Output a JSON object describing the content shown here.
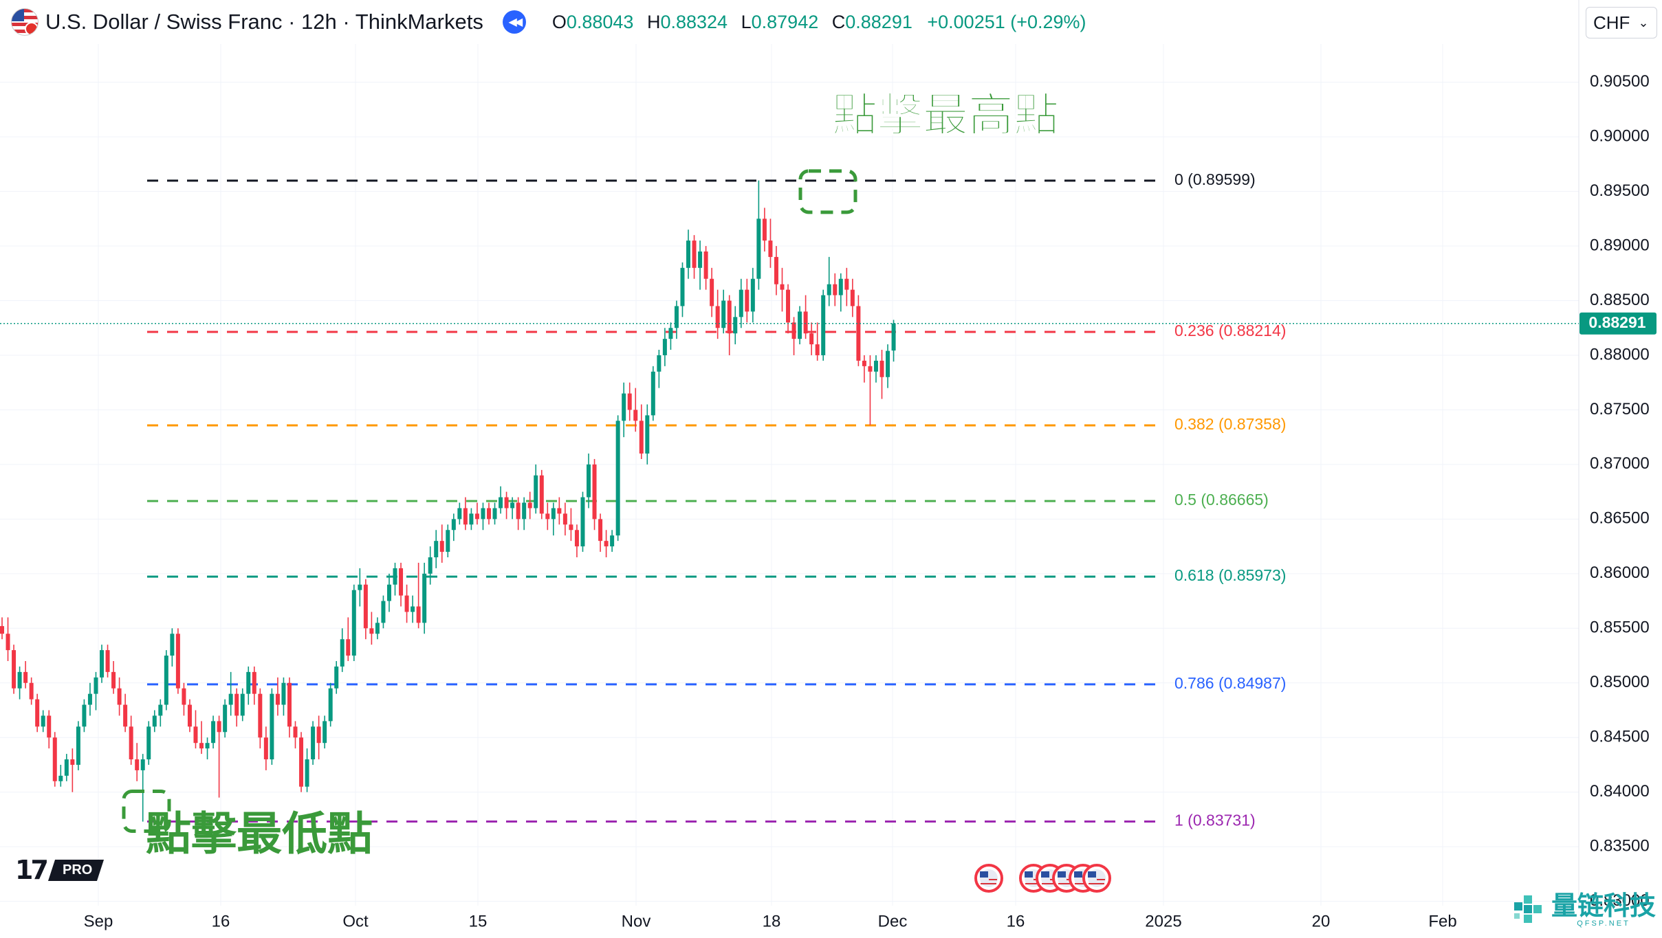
{
  "header": {
    "symbol": "U.S. Dollar / Swiss Franc · 12h · ThinkMarkets",
    "o_label": "O",
    "o": "0.88043",
    "h_label": "H",
    "h": "0.88324",
    "l_label": "L",
    "l": "0.87942",
    "c_label": "C",
    "c": "0.88291",
    "change": "+0.00251 (+0.29%)",
    "currency": "CHF"
  },
  "icons": {
    "flag": "usd-chf-flag-icon",
    "replay": "replay-rewind-icon",
    "chevron": "chevron-down-icon",
    "events": "us-economic-event-icon"
  },
  "colors": {
    "up": "#089981",
    "down": "#f23645",
    "annotation": "#3a9a3a",
    "price_tag": "#089981"
  },
  "annotations": {
    "high_text": "點擊最高點",
    "low_text": "點擊最低點"
  },
  "branding": {
    "logo_text": "17",
    "pro_badge": "PRO",
    "watermark_cn": "量链科技",
    "watermark_en": "QFSP.NET"
  },
  "chart_data": {
    "type": "candlestick",
    "interval": "12h",
    "x_ticks": [
      "Sep",
      "16",
      "Oct",
      "15",
      "Nov",
      "18",
      "Dec",
      "16",
      "2025",
      "20",
      "Feb"
    ],
    "y_ticks": [
      0.905,
      0.9,
      0.895,
      0.89,
      0.885,
      0.88,
      0.875,
      0.87,
      0.865,
      0.86,
      0.855,
      0.85,
      0.845,
      0.84,
      0.835,
      0.83
    ],
    "y_tick_labels": [
      "0.90500",
      "0.90000",
      "0.89500",
      "0.89000",
      "0.88500",
      "0.88000",
      "0.87500",
      "0.87000",
      "0.86500",
      "0.86000",
      "0.85500",
      "0.85000",
      "0.84500",
      "0.84000",
      "0.83500",
      "0.83000"
    ],
    "y_range": [
      0.8296,
      0.9085
    ],
    "last_price": 0.88291,
    "last_price_label": "0.88291",
    "fib_levels": [
      {
        "ratio": "0",
        "value": 0.89599,
        "label": "0 (0.89599)",
        "color": "#131722"
      },
      {
        "ratio": "0.236",
        "value": 0.88214,
        "label": "0.236 (0.88214)",
        "color": "#f23645"
      },
      {
        "ratio": "0.382",
        "value": 0.87358,
        "label": "0.382 (0.87358)",
        "color": "#ff9800"
      },
      {
        "ratio": "0.5",
        "value": 0.86665,
        "label": "0.5 (0.86665)",
        "color": "#4caf50"
      },
      {
        "ratio": "0.618",
        "value": 0.85973,
        "label": "0.618 (0.85973)",
        "color": "#089981"
      },
      {
        "ratio": "0.786",
        "value": 0.84987,
        "label": "0.786 (0.84987)",
        "color": "#2962ff"
      },
      {
        "ratio": "1",
        "value": 0.83731,
        "label": "1 (0.83731)",
        "color": "#9c27b0"
      }
    ],
    "swing_high": 0.89599,
    "swing_low": 0.83731,
    "candles": [
      [
        0.8552,
        0.856,
        0.854,
        0.8545
      ],
      [
        0.8545,
        0.856,
        0.852,
        0.853
      ],
      [
        0.853,
        0.8535,
        0.849,
        0.8495
      ],
      [
        0.8495,
        0.8515,
        0.8485,
        0.851
      ],
      [
        0.851,
        0.852,
        0.8495,
        0.85
      ],
      [
        0.85,
        0.8505,
        0.848,
        0.8485
      ],
      [
        0.8485,
        0.849,
        0.8455,
        0.846
      ],
      [
        0.846,
        0.8475,
        0.8455,
        0.847
      ],
      [
        0.847,
        0.8475,
        0.844,
        0.845
      ],
      [
        0.845,
        0.8455,
        0.8405,
        0.841
      ],
      [
        0.841,
        0.8425,
        0.8405,
        0.8415
      ],
      [
        0.8415,
        0.8435,
        0.841,
        0.843
      ],
      [
        0.843,
        0.844,
        0.84,
        0.8425
      ],
      [
        0.8425,
        0.8465,
        0.842,
        0.846
      ],
      [
        0.846,
        0.8485,
        0.8455,
        0.848
      ],
      [
        0.848,
        0.85,
        0.847,
        0.849
      ],
      [
        0.849,
        0.851,
        0.8475,
        0.8505
      ],
      [
        0.8505,
        0.8535,
        0.85,
        0.853
      ],
      [
        0.853,
        0.8535,
        0.8505,
        0.851
      ],
      [
        0.851,
        0.852,
        0.849,
        0.8495
      ],
      [
        0.8495,
        0.8505,
        0.847,
        0.848
      ],
      [
        0.848,
        0.849,
        0.8455,
        0.846
      ],
      [
        0.846,
        0.847,
        0.8425,
        0.843
      ],
      [
        0.843,
        0.8445,
        0.841,
        0.842
      ],
      [
        0.842,
        0.8435,
        0.8373,
        0.843
      ],
      [
        0.843,
        0.8465,
        0.8425,
        0.846
      ],
      [
        0.846,
        0.8475,
        0.8455,
        0.847
      ],
      [
        0.847,
        0.8485,
        0.846,
        0.848
      ],
      [
        0.848,
        0.853,
        0.8475,
        0.8525
      ],
      [
        0.8525,
        0.855,
        0.8515,
        0.8545
      ],
      [
        0.8545,
        0.855,
        0.849,
        0.8495
      ],
      [
        0.8495,
        0.85,
        0.847,
        0.848
      ],
      [
        0.848,
        0.8485,
        0.8455,
        0.846
      ],
      [
        0.846,
        0.8475,
        0.844,
        0.8445
      ],
      [
        0.8445,
        0.8465,
        0.8435,
        0.844
      ],
      [
        0.844,
        0.845,
        0.843,
        0.8445
      ],
      [
        0.8445,
        0.847,
        0.844,
        0.8465
      ],
      [
        0.8465,
        0.847,
        0.8395,
        0.8455
      ],
      [
        0.8455,
        0.8485,
        0.845,
        0.848
      ],
      [
        0.848,
        0.851,
        0.847,
        0.849
      ],
      [
        0.849,
        0.8495,
        0.846,
        0.847
      ],
      [
        0.847,
        0.8495,
        0.8465,
        0.849
      ],
      [
        0.849,
        0.8515,
        0.848,
        0.851
      ],
      [
        0.851,
        0.8515,
        0.848,
        0.849
      ],
      [
        0.849,
        0.8495,
        0.844,
        0.845
      ],
      [
        0.845,
        0.846,
        0.842,
        0.843
      ],
      [
        0.843,
        0.8495,
        0.8425,
        0.849
      ],
      [
        0.849,
        0.8505,
        0.847,
        0.848
      ],
      [
        0.848,
        0.8505,
        0.847,
        0.85
      ],
      [
        0.85,
        0.8505,
        0.845,
        0.846
      ],
      [
        0.846,
        0.8465,
        0.844,
        0.845
      ],
      [
        0.845,
        0.8455,
        0.84,
        0.8405
      ],
      [
        0.8405,
        0.844,
        0.84,
        0.843
      ],
      [
        0.843,
        0.8465,
        0.8425,
        0.846
      ],
      [
        0.846,
        0.847,
        0.843,
        0.8445
      ],
      [
        0.8445,
        0.847,
        0.844,
        0.8465
      ],
      [
        0.8465,
        0.85,
        0.846,
        0.8495
      ],
      [
        0.8495,
        0.852,
        0.849,
        0.8515
      ],
      [
        0.8515,
        0.855,
        0.851,
        0.854
      ],
      [
        0.854,
        0.856,
        0.852,
        0.8525
      ],
      [
        0.8525,
        0.859,
        0.852,
        0.8585
      ],
      [
        0.8585,
        0.8605,
        0.857,
        0.859
      ],
      [
        0.859,
        0.8595,
        0.854,
        0.855
      ],
      [
        0.855,
        0.8565,
        0.8535,
        0.8545
      ],
      [
        0.8545,
        0.856,
        0.854,
        0.8555
      ],
      [
        0.8555,
        0.858,
        0.855,
        0.8575
      ],
      [
        0.8575,
        0.86,
        0.8565,
        0.859
      ],
      [
        0.859,
        0.861,
        0.858,
        0.8605
      ],
      [
        0.8605,
        0.861,
        0.857,
        0.858
      ],
      [
        0.858,
        0.859,
        0.8555,
        0.8565
      ],
      [
        0.8565,
        0.858,
        0.8555,
        0.857
      ],
      [
        0.857,
        0.861,
        0.855,
        0.8555
      ],
      [
        0.8555,
        0.861,
        0.8545,
        0.86
      ],
      [
        0.86,
        0.8625,
        0.859,
        0.8615
      ],
      [
        0.8615,
        0.864,
        0.8605,
        0.863
      ],
      [
        0.863,
        0.8645,
        0.861,
        0.862
      ],
      [
        0.862,
        0.8645,
        0.8615,
        0.864
      ],
      [
        0.864,
        0.8655,
        0.863,
        0.865
      ],
      [
        0.865,
        0.8665,
        0.8645,
        0.866
      ],
      [
        0.866,
        0.867,
        0.864,
        0.8645
      ],
      [
        0.8645,
        0.866,
        0.864,
        0.8655
      ],
      [
        0.8655,
        0.8665,
        0.8645,
        0.865
      ],
      [
        0.865,
        0.8665,
        0.864,
        0.866
      ],
      [
        0.866,
        0.8665,
        0.8645,
        0.865
      ],
      [
        0.865,
        0.8665,
        0.8645,
        0.866
      ],
      [
        0.866,
        0.868,
        0.8655,
        0.867
      ],
      [
        0.867,
        0.8675,
        0.865,
        0.866
      ],
      [
        0.866,
        0.867,
        0.865,
        0.8665
      ],
      [
        0.8665,
        0.867,
        0.864,
        0.865
      ],
      [
        0.865,
        0.867,
        0.864,
        0.8665
      ],
      [
        0.8665,
        0.8675,
        0.865,
        0.866
      ],
      [
        0.866,
        0.87,
        0.8655,
        0.869
      ],
      [
        0.869,
        0.8695,
        0.865,
        0.8655
      ],
      [
        0.8655,
        0.8665,
        0.864,
        0.865
      ],
      [
        0.865,
        0.8665,
        0.8635,
        0.866
      ],
      [
        0.866,
        0.867,
        0.8645,
        0.8655
      ],
      [
        0.8655,
        0.8665,
        0.8635,
        0.8645
      ],
      [
        0.8645,
        0.866,
        0.863,
        0.864
      ],
      [
        0.864,
        0.8645,
        0.8615,
        0.8625
      ],
      [
        0.8625,
        0.8675,
        0.862,
        0.867
      ],
      [
        0.867,
        0.871,
        0.866,
        0.87
      ],
      [
        0.87,
        0.8705,
        0.864,
        0.865
      ],
      [
        0.865,
        0.8655,
        0.862,
        0.863
      ],
      [
        0.863,
        0.864,
        0.8615,
        0.8625
      ],
      [
        0.8625,
        0.864,
        0.862,
        0.8635
      ],
      [
        0.8635,
        0.8745,
        0.863,
        0.874
      ],
      [
        0.874,
        0.8775,
        0.8725,
        0.8765
      ],
      [
        0.8765,
        0.8775,
        0.874,
        0.875
      ],
      [
        0.875,
        0.877,
        0.873,
        0.874
      ],
      [
        0.874,
        0.8755,
        0.8705,
        0.871
      ],
      [
        0.871,
        0.8755,
        0.87,
        0.8745
      ],
      [
        0.8745,
        0.879,
        0.874,
        0.8785
      ],
      [
        0.8785,
        0.8805,
        0.877,
        0.88
      ],
      [
        0.88,
        0.8825,
        0.879,
        0.8815
      ],
      [
        0.8815,
        0.883,
        0.8805,
        0.8825
      ],
      [
        0.8825,
        0.885,
        0.8815,
        0.8845
      ],
      [
        0.8845,
        0.8885,
        0.8835,
        0.888
      ],
      [
        0.888,
        0.8915,
        0.887,
        0.8905
      ],
      [
        0.8905,
        0.891,
        0.887,
        0.888
      ],
      [
        0.888,
        0.8905,
        0.886,
        0.8895
      ],
      [
        0.8895,
        0.89,
        0.886,
        0.887
      ],
      [
        0.887,
        0.888,
        0.8835,
        0.8845
      ],
      [
        0.8845,
        0.886,
        0.8815,
        0.8825
      ],
      [
        0.8825,
        0.886,
        0.882,
        0.885
      ],
      [
        0.885,
        0.8855,
        0.88,
        0.882
      ],
      [
        0.882,
        0.8845,
        0.881,
        0.8835
      ],
      [
        0.8835,
        0.887,
        0.8825,
        0.886
      ],
      [
        0.886,
        0.887,
        0.883,
        0.884
      ],
      [
        0.884,
        0.888,
        0.883,
        0.887
      ],
      [
        0.887,
        0.896,
        0.886,
        0.8925
      ],
      [
        0.8925,
        0.8935,
        0.8895,
        0.8905
      ],
      [
        0.8905,
        0.8925,
        0.888,
        0.889
      ],
      [
        0.889,
        0.89,
        0.8855,
        0.8865
      ],
      [
        0.8865,
        0.888,
        0.884,
        0.886
      ],
      [
        0.886,
        0.8865,
        0.882,
        0.883
      ],
      [
        0.883,
        0.8835,
        0.88,
        0.8815
      ],
      [
        0.8815,
        0.8845,
        0.881,
        0.884
      ],
      [
        0.884,
        0.8855,
        0.8815,
        0.882
      ],
      [
        0.882,
        0.883,
        0.88,
        0.881
      ],
      [
        0.881,
        0.883,
        0.8795,
        0.88
      ],
      [
        0.88,
        0.886,
        0.8795,
        0.8855
      ],
      [
        0.8855,
        0.889,
        0.8845,
        0.8865
      ],
      [
        0.8865,
        0.8875,
        0.8845,
        0.8855
      ],
      [
        0.8855,
        0.8875,
        0.884,
        0.887
      ],
      [
        0.887,
        0.888,
        0.8845,
        0.886
      ],
      [
        0.886,
        0.887,
        0.8835,
        0.8845
      ],
      [
        0.8845,
        0.8855,
        0.879,
        0.8795
      ],
      [
        0.8795,
        0.88,
        0.8775,
        0.879
      ],
      [
        0.879,
        0.88,
        0.8736,
        0.8785
      ],
      [
        0.8785,
        0.88,
        0.8775,
        0.8795
      ],
      [
        0.8795,
        0.8805,
        0.876,
        0.878
      ],
      [
        0.878,
        0.881,
        0.877,
        0.8804
      ],
      [
        0.88043,
        0.88324,
        0.87942,
        0.88291
      ]
    ]
  }
}
